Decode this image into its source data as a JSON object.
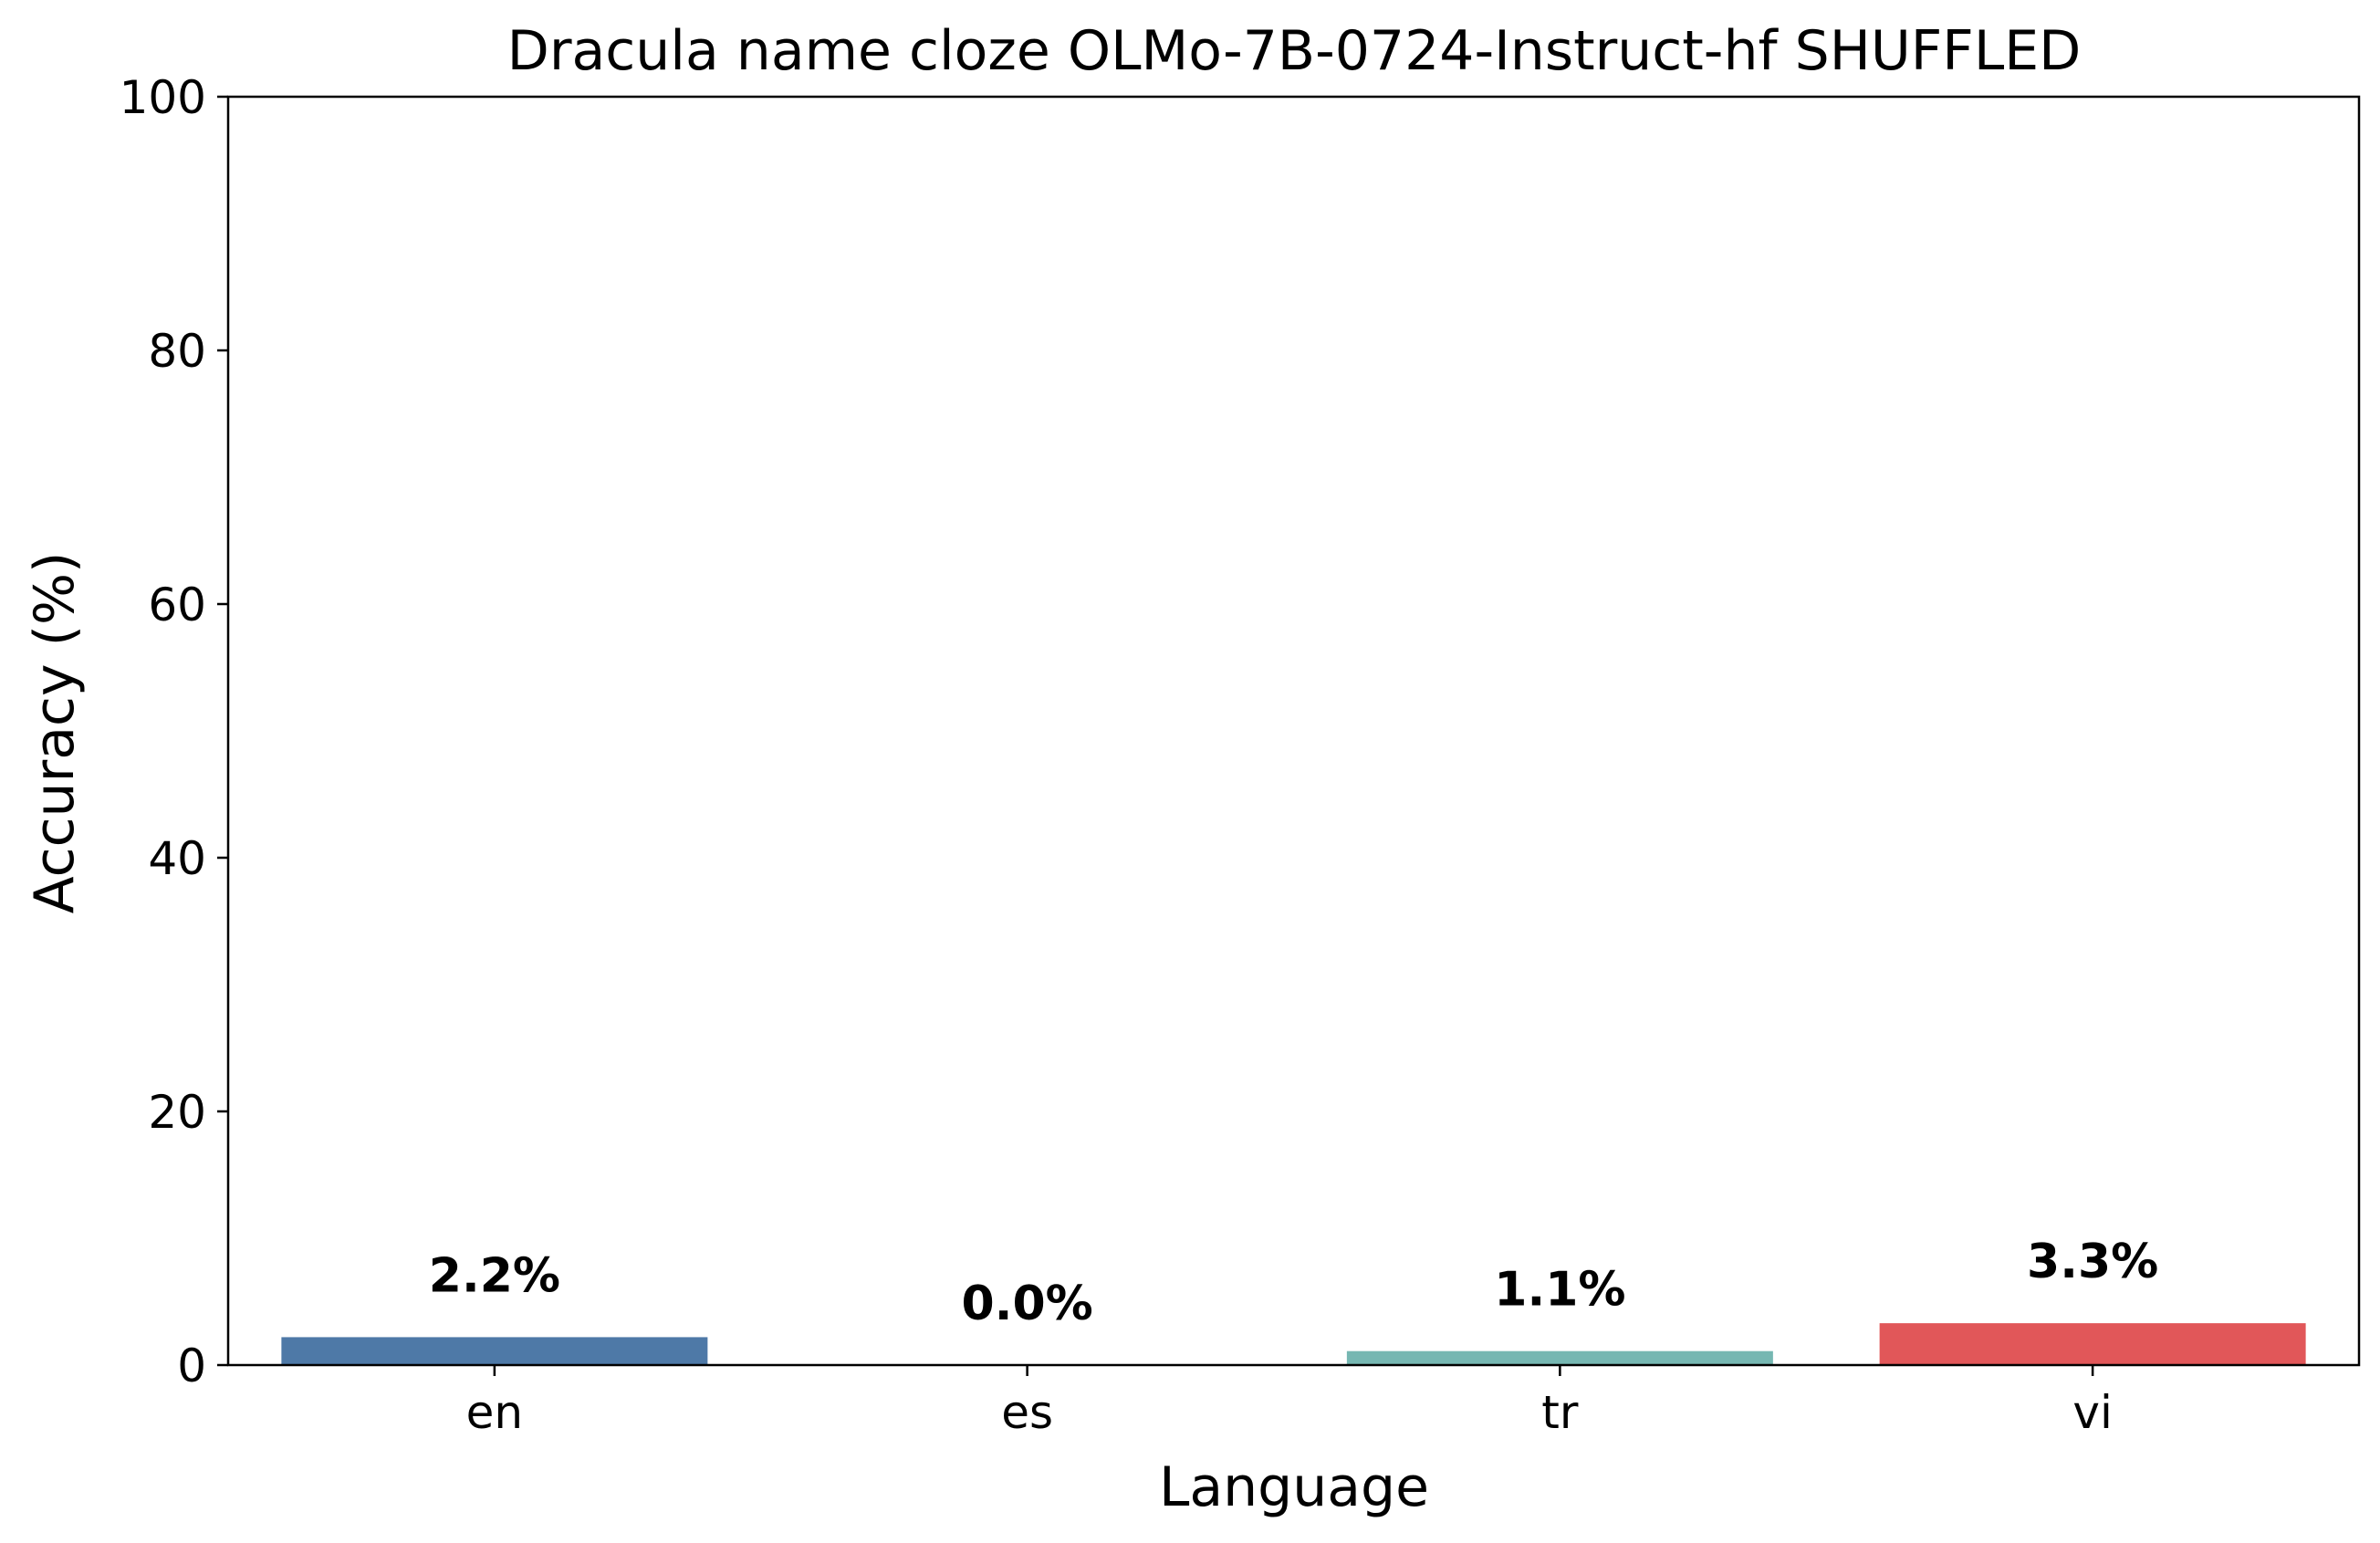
{
  "chart_data": {
    "type": "bar",
    "title": "Dracula name cloze OLMo-7B-0724-Instruct-hf SHUFFLED",
    "xlabel": "Language",
    "ylabel": "Accuracy (%)",
    "categories": [
      "en",
      "es",
      "tr",
      "vi"
    ],
    "values": [
      2.2,
      0.0,
      1.1,
      3.3
    ],
    "value_labels": [
      "2.2%",
      "0.0%",
      "1.1%",
      "3.3%"
    ],
    "colors": [
      "#4e79a7",
      "#f28e2b",
      "#76b7b2",
      "#e15759"
    ],
    "ylim": [
      0,
      100
    ],
    "yticks": [
      0,
      20,
      40,
      60,
      80,
      100
    ],
    "grid": false,
    "legend": "none"
  }
}
